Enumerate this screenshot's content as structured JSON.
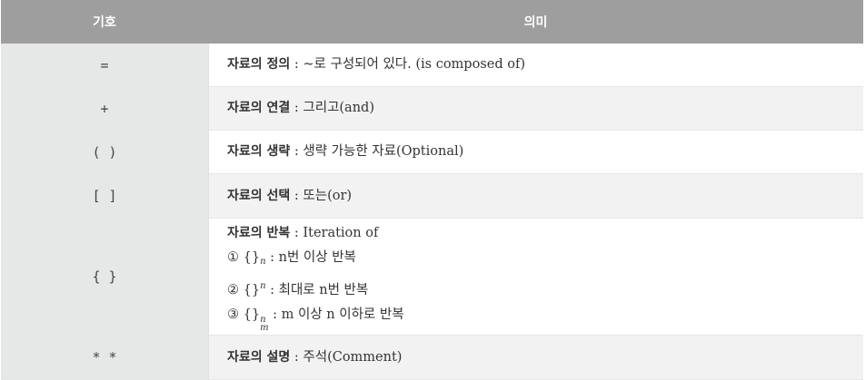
{
  "header": {
    "symbol": "기호",
    "meaning": "의미"
  },
  "rows": [
    {
      "symbol": "=",
      "term": "자료의 정의",
      "desc": " : ~로 구성되어 있다. (is composed of)"
    },
    {
      "symbol": "+",
      "term": "자료의 연결",
      "desc": " : 그리고(and)"
    },
    {
      "symbol": "( )",
      "term": "자료의 생략",
      "desc": " : 생략 가능한 자료(Optional)"
    },
    {
      "symbol": "[ ]",
      "term": "자료의 선택",
      "desc": " : 또는(or)"
    },
    {
      "symbol": "{ }",
      "term": "자료의 반복",
      "desc": " : Iteration of",
      "items": [
        {
          "marker": "①",
          "braces": "{}",
          "sub": "n",
          "text": " : n번 이상 반복"
        },
        {
          "marker": "②",
          "braces": "{}",
          "sup": "n",
          "text": " : 최대로 n번 반복"
        },
        {
          "marker": "③",
          "braces": "{}",
          "sup": "n",
          "sub": "m",
          "text": " : m 이상 n 이하로 반복"
        }
      ]
    },
    {
      "symbol": "* *",
      "term": "자료의 설명",
      "desc": " : 주석(Comment)"
    }
  ],
  "colors": {
    "header_bg": "#9e9e9e",
    "symbol_bg": "#e6e7e7",
    "row_alt_bg": "#f2f2f2"
  }
}
